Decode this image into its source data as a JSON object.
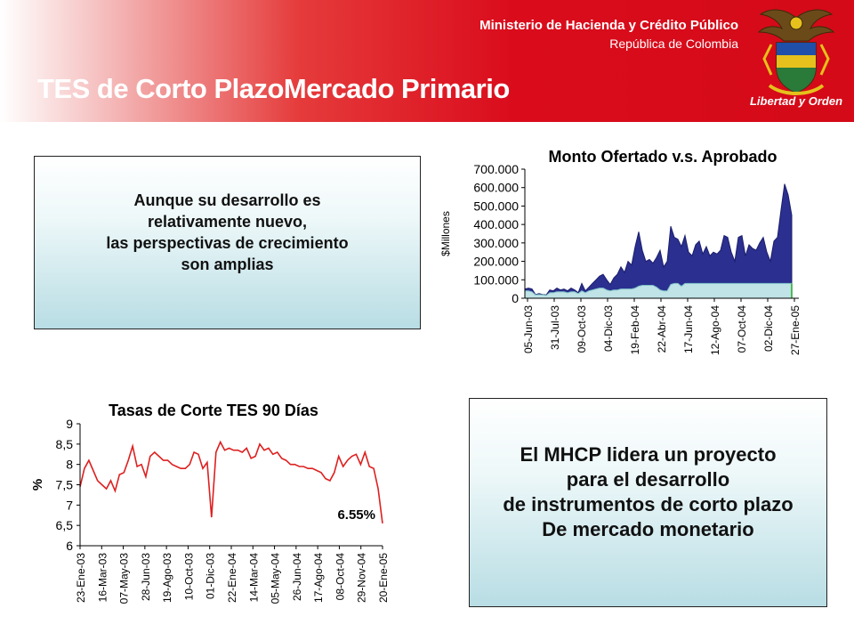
{
  "header": {
    "ministry": "Ministerio de Hacienda y Crédito Público",
    "country": "República de Colombia",
    "motto": "Libertad y Orden",
    "title": "TES de Corto PlazoMercado Primario",
    "colors": {
      "band": "#d40a18",
      "text": "#ffffff"
    }
  },
  "box1": {
    "lines": [
      "Aunque su desarrollo es",
      "relativamente nuevo,",
      "las perspectivas de crecimiento",
      "son amplias"
    ]
  },
  "box2": {
    "lines": [
      "El MHCP lidera un proyecto",
      "para el desarrollo",
      "de instrumentos de corto plazo",
      "De  mercado monetario"
    ]
  },
  "chart_data": [
    {
      "type": "area",
      "title": "Monto Ofertado v.s. Aprobado",
      "ylabel": "$Millones",
      "ylim": [
        0,
        700000
      ],
      "yticks": [
        "0",
        "100.000",
        "200.000",
        "300.000",
        "400.000",
        "500.000",
        "600.000",
        "700.000"
      ],
      "xticks": [
        "05-Jun-03",
        "31-Jul-03",
        "09-Oct-03",
        "04-Dic-03",
        "19-Feb-04",
        "22-Abr-04",
        "17-Jun-04",
        "12-Ago-04",
        "07-Oct-04",
        "02-Dic-04",
        "27-Ene-05"
      ],
      "series": [
        {
          "values": [
            50000,
            55000,
            50000,
            20000,
            25000,
            20000,
            18000,
            45000,
            40000,
            55000,
            45000,
            50000,
            40000,
            55000,
            45000,
            30000,
            80000,
            40000,
            60000,
            80000,
            100000,
            120000,
            130000,
            100000,
            75000,
            110000,
            130000,
            170000,
            140000,
            200000,
            180000,
            280000,
            360000,
            260000,
            200000,
            210000,
            190000,
            220000,
            260000,
            170000,
            200000,
            390000,
            330000,
            320000,
            280000,
            340000,
            250000,
            230000,
            290000,
            310000,
            240000,
            280000,
            230000,
            250000,
            240000,
            260000,
            340000,
            330000,
            250000,
            200000,
            330000,
            340000,
            230000,
            290000,
            270000,
            260000,
            300000,
            330000,
            250000,
            200000,
            310000,
            330000,
            480000,
            620000,
            560000,
            450000
          ],
          "color": "#2b2f8f"
        },
        {
          "values": [
            40000,
            40000,
            35000,
            18000,
            20000,
            18000,
            15000,
            30000,
            30000,
            35000,
            35000,
            35000,
            30000,
            35000,
            35000,
            25000,
            40000,
            30000,
            40000,
            45000,
            50000,
            55000,
            55000,
            45000,
            40000,
            45000,
            45000,
            50000,
            50000,
            50000,
            50000,
            55000,
            65000,
            70000,
            70000,
            70000,
            70000,
            60000,
            45000,
            40000,
            40000,
            75000,
            80000,
            80000,
            65000,
            80000,
            80000,
            80000,
            80000,
            80000,
            80000,
            80000,
            80000,
            80000,
            80000,
            80000,
            80000,
            80000,
            80000,
            80000,
            80000,
            80000,
            80000,
            80000,
            80000,
            80000,
            80000,
            80000,
            80000,
            80000,
            80000,
            80000,
            80000,
            80000,
            80000,
            80000
          ],
          "color": "#bfe3e6"
        }
      ]
    },
    {
      "type": "line",
      "title": "Tasas de Corte TES 90 Días",
      "ylabel": "%",
      "ylim": [
        6,
        9
      ],
      "yticks": [
        "6",
        "6,5",
        "7",
        "7,5",
        "8",
        "8,5",
        "9"
      ],
      "xticks": [
        "23-Ene-03",
        "16-Mar-03",
        "07-May-03",
        "28-Jun-03",
        "19-Ago-03",
        "10-Oct-03",
        "01-Dic-03",
        "22-Ene-04",
        "14-Mar-04",
        "05-May-04",
        "26-Jun-04",
        "17-Ago-04",
        "08-Oct-04",
        "29-Nov-04",
        "20-Ene-05"
      ],
      "annotation": "6.55%",
      "series": [
        {
          "values": [
            7.45,
            7.9,
            8.1,
            7.85,
            7.6,
            7.5,
            7.4,
            7.6,
            7.35,
            7.75,
            7.8,
            8.1,
            8.45,
            7.95,
            8.0,
            7.7,
            8.2,
            8.3,
            8.2,
            8.1,
            8.1,
            8.0,
            7.95,
            7.9,
            7.9,
            8.0,
            8.3,
            8.25,
            7.9,
            8.05,
            6.7,
            8.3,
            8.55,
            8.35,
            8.4,
            8.35,
            8.35,
            8.3,
            8.4,
            8.15,
            8.2,
            8.5,
            8.35,
            8.4,
            8.25,
            8.3,
            8.15,
            8.1,
            8.0,
            8.0,
            7.95,
            7.95,
            7.9,
            7.9,
            7.85,
            7.8,
            7.65,
            7.6,
            7.8,
            8.2,
            7.95,
            8.1,
            8.2,
            8.25,
            8.0,
            8.3,
            7.95,
            7.9,
            7.4,
            6.55
          ],
          "color": "#dd2020"
        }
      ]
    }
  ]
}
